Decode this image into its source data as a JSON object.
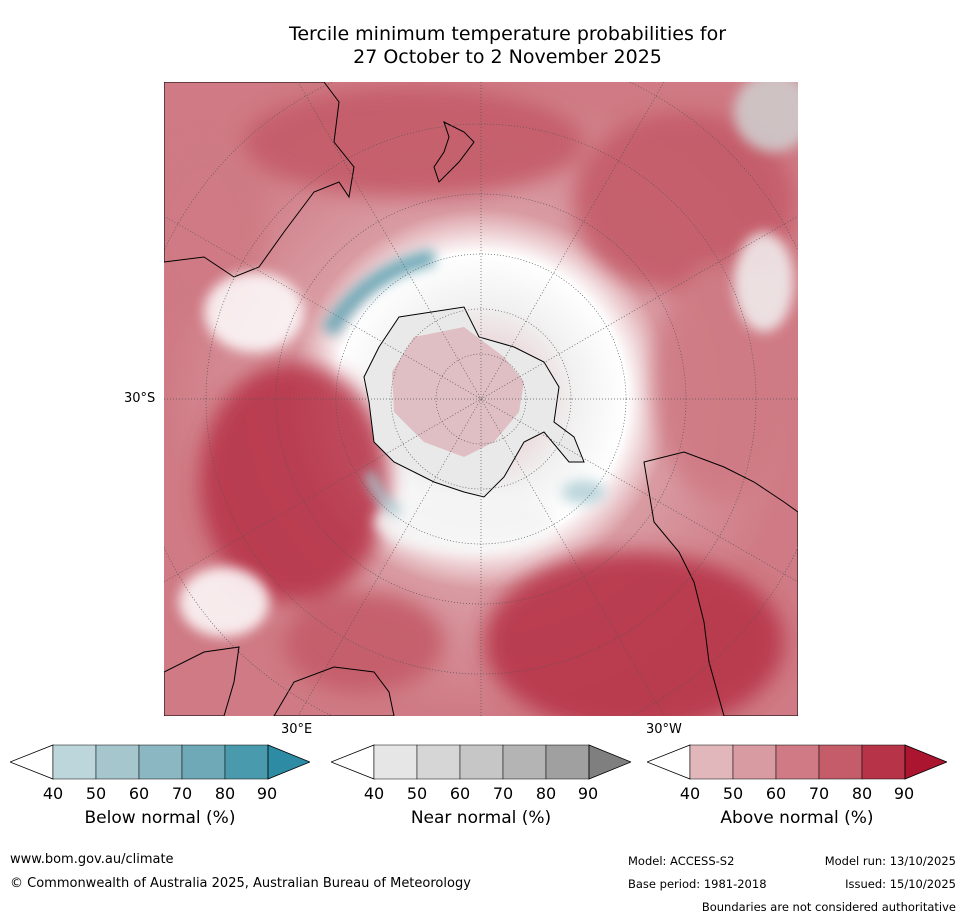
{
  "title": {
    "line1": "Tercile minimum temperature probabilities for",
    "line2": "27 October to 2 November 2025"
  },
  "map": {
    "labels": {
      "lat_30s": "30°S",
      "lon_30e": "30°E",
      "lon_30w": "30°W"
    },
    "colors": {
      "land_outline": "#000000",
      "graticule": "#555555",
      "background": "#ffffff"
    }
  },
  "colorbars": [
    {
      "label": "Below normal (%)",
      "ticks": [
        "40",
        "50",
        "60",
        "70",
        "80",
        "90"
      ],
      "colors": [
        "#ffffff",
        "#bcd6dc",
        "#a5c6cd",
        "#8bb7c2",
        "#6fa9b7",
        "#4a9aae",
        "#2d8ba3"
      ]
    },
    {
      "label": "Near normal (%)",
      "ticks": [
        "40",
        "50",
        "60",
        "70",
        "80",
        "90"
      ],
      "colors": [
        "#ffffff",
        "#e6e6e6",
        "#d6d6d6",
        "#c6c6c6",
        "#b4b4b4",
        "#a0a0a0",
        "#7f7f7f"
      ]
    },
    {
      "label": "Above normal (%)",
      "ticks": [
        "40",
        "50",
        "60",
        "70",
        "80",
        "90"
      ],
      "colors": [
        "#ffffff",
        "#e2b7bc",
        "#d99ba2",
        "#cf7a84",
        "#c45c69",
        "#b73448",
        "#ab1530"
      ]
    }
  ],
  "footer": {
    "website": "www.bom.gov.au/climate",
    "copyright": "© Commonwealth of Australia 2025, Australian Bureau of Meteorology",
    "model": "Model: ACCESS-S2",
    "model_run": "Model run: 13/10/2025",
    "base_period": "Base period: 1981-2018",
    "issued": "Issued: 15/10/2025",
    "boundaries": "Boundaries are not considered authoritative"
  }
}
